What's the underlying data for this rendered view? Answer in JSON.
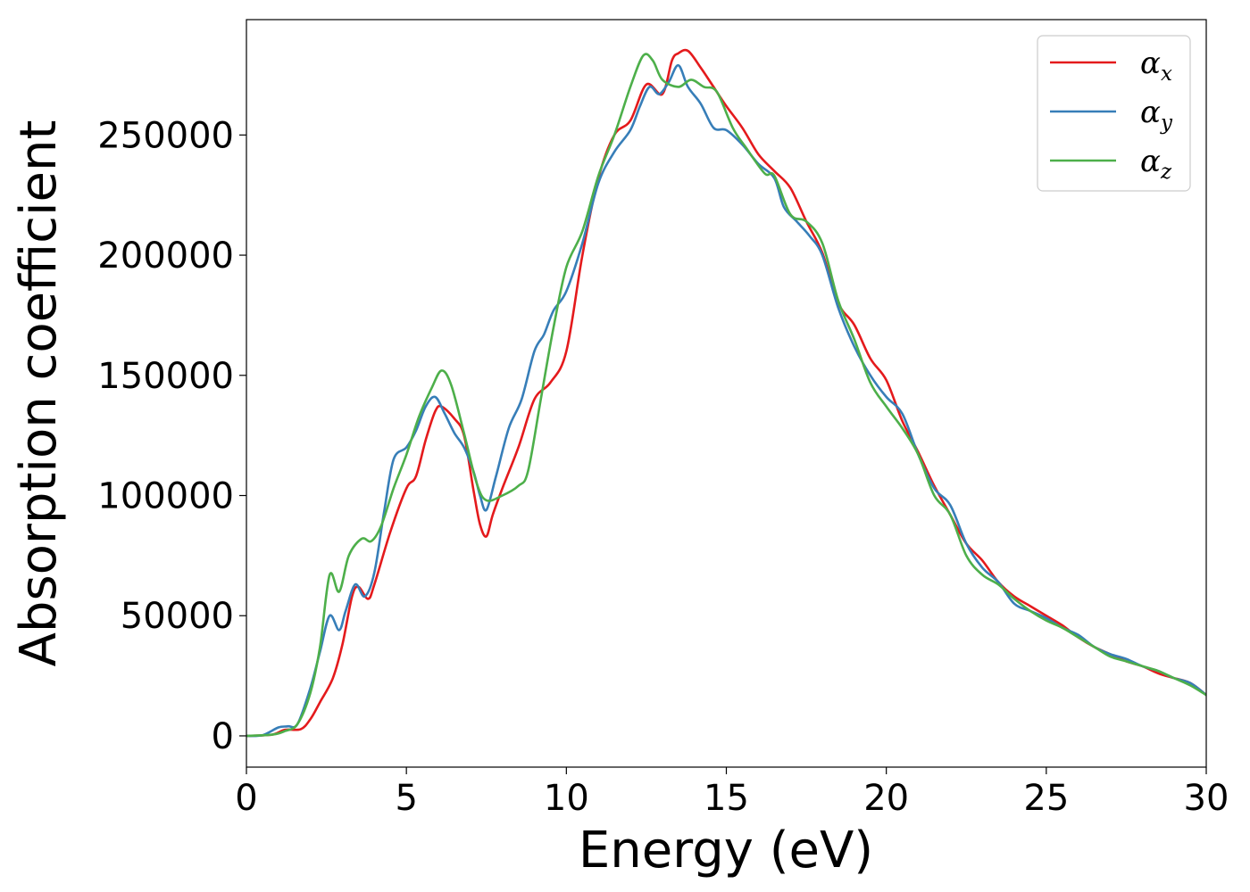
{
  "chart_data": {
    "type": "line",
    "xlabel": "Energy (eV)",
    "ylabel": "Absorption coefficient",
    "xlim": [
      0,
      30
    ],
    "ylim": [
      -13000,
      298000
    ],
    "xticks": [
      0,
      5,
      10,
      15,
      20,
      25,
      30
    ],
    "yticks": [
      0,
      50000,
      100000,
      150000,
      200000,
      250000
    ],
    "grid": false,
    "legend_placement": "top-right",
    "series": [
      {
        "name": "αx",
        "symbol": "α",
        "subscript": "x",
        "color": "#e41a1c",
        "points": [
          [
            0,
            0
          ],
          [
            0.8,
            500
          ],
          [
            1.2,
            2500
          ],
          [
            1.7,
            2800
          ],
          [
            2.0,
            7000
          ],
          [
            2.3,
            14000
          ],
          [
            2.7,
            24000
          ],
          [
            3.0,
            38000
          ],
          [
            3.3,
            58000
          ],
          [
            3.5,
            62000
          ],
          [
            3.8,
            57000
          ],
          [
            4.0,
            63000
          ],
          [
            4.5,
            85000
          ],
          [
            5.0,
            103000
          ],
          [
            5.3,
            108000
          ],
          [
            5.6,
            123000
          ],
          [
            5.9,
            135000
          ],
          [
            6.1,
            137000
          ],
          [
            6.5,
            132000
          ],
          [
            6.8,
            125000
          ],
          [
            7.1,
            102000
          ],
          [
            7.3,
            88000
          ],
          [
            7.5,
            83000
          ],
          [
            7.7,
            92000
          ],
          [
            8.0,
            103000
          ],
          [
            8.5,
            120000
          ],
          [
            9.0,
            140000
          ],
          [
            9.5,
            147000
          ],
          [
            10.0,
            160000
          ],
          [
            10.5,
            200000
          ],
          [
            11.0,
            232000
          ],
          [
            11.5,
            250000
          ],
          [
            12.0,
            256000
          ],
          [
            12.5,
            271000
          ],
          [
            13.0,
            267000
          ],
          [
            13.3,
            281000
          ],
          [
            13.5,
            284000
          ],
          [
            13.8,
            285000
          ],
          [
            14.2,
            278000
          ],
          [
            14.6,
            270000
          ],
          [
            15.0,
            262000
          ],
          [
            15.5,
            253000
          ],
          [
            16.0,
            242000
          ],
          [
            16.5,
            235000
          ],
          [
            17.0,
            228000
          ],
          [
            17.5,
            214000
          ],
          [
            18.0,
            201000
          ],
          [
            18.5,
            180000
          ],
          [
            19.0,
            171000
          ],
          [
            19.5,
            157000
          ],
          [
            20.0,
            148000
          ],
          [
            20.5,
            131000
          ],
          [
            21.0,
            118000
          ],
          [
            21.5,
            104000
          ],
          [
            22.0,
            92000
          ],
          [
            22.5,
            80000
          ],
          [
            23.0,
            73000
          ],
          [
            23.5,
            64000
          ],
          [
            24.0,
            58000
          ],
          [
            24.5,
            54000
          ],
          [
            25.0,
            50000
          ],
          [
            25.5,
            46000
          ],
          [
            26.0,
            41000
          ],
          [
            26.5,
            37000
          ],
          [
            27.0,
            34000
          ],
          [
            27.5,
            31000
          ],
          [
            28.0,
            29000
          ],
          [
            28.5,
            26000
          ],
          [
            29.0,
            24000
          ],
          [
            29.5,
            22000
          ],
          [
            30.0,
            17000
          ]
        ]
      },
      {
        "name": "αy",
        "symbol": "α",
        "subscript": "y",
        "color": "#377eb8",
        "points": [
          [
            0,
            0
          ],
          [
            0.5,
            300
          ],
          [
            1.0,
            3500
          ],
          [
            1.3,
            4000
          ],
          [
            1.6,
            5000
          ],
          [
            2.0,
            20000
          ],
          [
            2.3,
            35000
          ],
          [
            2.6,
            50000
          ],
          [
            2.9,
            44000
          ],
          [
            3.1,
            52000
          ],
          [
            3.4,
            63000
          ],
          [
            3.7,
            58000
          ],
          [
            4.0,
            68000
          ],
          [
            4.3,
            93000
          ],
          [
            4.6,
            115000
          ],
          [
            5.0,
            120000
          ],
          [
            5.3,
            127000
          ],
          [
            5.6,
            137000
          ],
          [
            5.9,
            141000
          ],
          [
            6.2,
            134000
          ],
          [
            6.5,
            126000
          ],
          [
            6.8,
            120000
          ],
          [
            7.1,
            110000
          ],
          [
            7.3,
            100000
          ],
          [
            7.5,
            94000
          ],
          [
            7.8,
            108000
          ],
          [
            8.2,
            128000
          ],
          [
            8.6,
            140000
          ],
          [
            9.0,
            160000
          ],
          [
            9.3,
            167000
          ],
          [
            9.6,
            177000
          ],
          [
            10.0,
            185000
          ],
          [
            10.5,
            205000
          ],
          [
            11.0,
            230000
          ],
          [
            11.5,
            243000
          ],
          [
            12.0,
            252000
          ],
          [
            12.3,
            262000
          ],
          [
            12.6,
            270000
          ],
          [
            12.9,
            267000
          ],
          [
            13.2,
            272000
          ],
          [
            13.5,
            279000
          ],
          [
            13.8,
            270000
          ],
          [
            14.2,
            263000
          ],
          [
            14.6,
            253000
          ],
          [
            15.0,
            252000
          ],
          [
            15.5,
            246000
          ],
          [
            16.0,
            238000
          ],
          [
            16.5,
            232000
          ],
          [
            16.8,
            220000
          ],
          [
            17.2,
            214000
          ],
          [
            17.6,
            208000
          ],
          [
            18.0,
            200000
          ],
          [
            18.5,
            178000
          ],
          [
            19.0,
            162000
          ],
          [
            19.5,
            150000
          ],
          [
            20.0,
            141000
          ],
          [
            20.5,
            134000
          ],
          [
            21.0,
            117000
          ],
          [
            21.5,
            103000
          ],
          [
            22.0,
            96000
          ],
          [
            22.5,
            80000
          ],
          [
            23.0,
            70000
          ],
          [
            23.5,
            64000
          ],
          [
            24.0,
            55000
          ],
          [
            24.5,
            52000
          ],
          [
            25.0,
            49000
          ],
          [
            25.5,
            45000
          ],
          [
            26.0,
            42000
          ],
          [
            26.5,
            37000
          ],
          [
            27.0,
            34000
          ],
          [
            27.5,
            32000
          ],
          [
            28.0,
            29000
          ],
          [
            28.5,
            27000
          ],
          [
            29.0,
            24000
          ],
          [
            29.5,
            22000
          ],
          [
            30.0,
            17000
          ]
        ]
      },
      {
        "name": "αz",
        "symbol": "α",
        "subscript": "z",
        "color": "#4daf4a",
        "points": [
          [
            0,
            0
          ],
          [
            0.8,
            500
          ],
          [
            1.2,
            2000
          ],
          [
            1.6,
            5000
          ],
          [
            2.0,
            18000
          ],
          [
            2.3,
            37000
          ],
          [
            2.6,
            67000
          ],
          [
            2.9,
            60000
          ],
          [
            3.2,
            75000
          ],
          [
            3.6,
            82000
          ],
          [
            3.9,
            81000
          ],
          [
            4.2,
            87000
          ],
          [
            4.6,
            103000
          ],
          [
            5.0,
            117000
          ],
          [
            5.4,
            133000
          ],
          [
            5.8,
            145000
          ],
          [
            6.1,
            152000
          ],
          [
            6.4,
            146000
          ],
          [
            6.8,
            126000
          ],
          [
            7.2,
            105000
          ],
          [
            7.5,
            98000
          ],
          [
            8.0,
            100000
          ],
          [
            8.5,
            104000
          ],
          [
            8.8,
            110000
          ],
          [
            9.2,
            140000
          ],
          [
            9.6,
            170000
          ],
          [
            10.0,
            195000
          ],
          [
            10.5,
            210000
          ],
          [
            11.0,
            233000
          ],
          [
            11.5,
            250000
          ],
          [
            12.0,
            270000
          ],
          [
            12.4,
            283000
          ],
          [
            12.7,
            281000
          ],
          [
            13.0,
            273000
          ],
          [
            13.5,
            270000
          ],
          [
            13.9,
            273000
          ],
          [
            14.3,
            270000
          ],
          [
            14.7,
            268000
          ],
          [
            15.2,
            253000
          ],
          [
            15.6,
            245000
          ],
          [
            16.2,
            234000
          ],
          [
            16.5,
            233000
          ],
          [
            17.0,
            217000
          ],
          [
            17.5,
            214000
          ],
          [
            18.0,
            205000
          ],
          [
            18.5,
            181000
          ],
          [
            19.0,
            165000
          ],
          [
            19.5,
            147000
          ],
          [
            20.0,
            137000
          ],
          [
            20.5,
            128000
          ],
          [
            21.0,
            117000
          ],
          [
            21.5,
            100000
          ],
          [
            22.0,
            92000
          ],
          [
            22.5,
            75000
          ],
          [
            23.0,
            67000
          ],
          [
            23.5,
            63000
          ],
          [
            24.0,
            57000
          ],
          [
            24.5,
            52000
          ],
          [
            25.0,
            48000
          ],
          [
            25.5,
            45000
          ],
          [
            26.0,
            41000
          ],
          [
            26.5,
            37000
          ],
          [
            27.0,
            33000
          ],
          [
            27.5,
            31000
          ],
          [
            28.0,
            29000
          ],
          [
            28.5,
            27000
          ],
          [
            29.0,
            24000
          ],
          [
            29.5,
            21000
          ],
          [
            30.0,
            17000
          ]
        ]
      }
    ]
  }
}
